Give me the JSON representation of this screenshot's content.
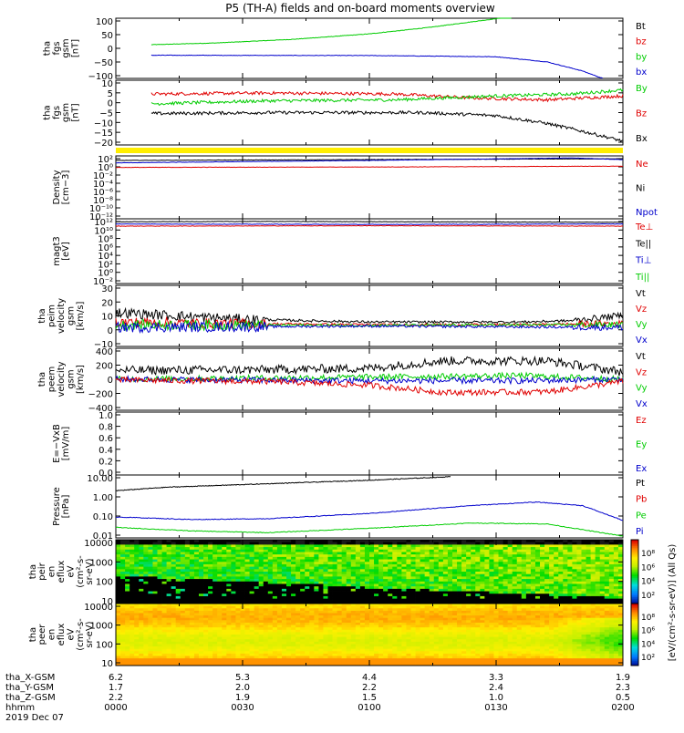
{
  "title": "P5 (TH-A) fields and on-board moments overview",
  "colors": {
    "black": "#000000",
    "red": "#e00000",
    "green": "#00cc00",
    "blue": "#0000cc",
    "yellow": "#ffee00"
  },
  "chart_data": [
    {
      "type": "line",
      "name": "tha-fgs-gsm",
      "ylabel_lines": [
        "tha",
        "fgs",
        "gsm",
        "[nT]"
      ],
      "yticks": [
        "100",
        "50",
        "0",
        "−50",
        "−100"
      ],
      "ylim": [
        -100,
        100
      ],
      "legend": [
        {
          "label": "Bt",
          "color": "#000000"
        },
        {
          "label": "bz",
          "color": "#e00000"
        },
        {
          "label": "by",
          "color": "#00cc00"
        },
        {
          "label": "bx",
          "color": "#0000cc"
        }
      ],
      "series": [
        {
          "color": "#00cc00",
          "x": [
            0.07,
            0.2,
            0.35,
            0.5,
            0.62,
            0.72,
            0.78
          ],
          "y": [
            12,
            18,
            30,
            48,
            70,
            92,
            105
          ]
        },
        {
          "color": "#0000cc",
          "x": [
            0.07,
            0.5,
            0.75,
            0.85,
            0.92,
            0.96
          ],
          "y": [
            -23,
            -24,
            -28,
            -45,
            -75,
            -100
          ]
        }
      ]
    },
    {
      "type": "line",
      "name": "tha-fgs-gsm-2",
      "ylabel_lines": [
        "tha",
        "fgs",
        "gsm",
        "[nT]"
      ],
      "yticks": [
        "10",
        "5",
        "0",
        "−5",
        "−10",
        "−15",
        "−20"
      ],
      "ylim": [
        -22,
        11
      ],
      "legend": [
        {
          "label": "By",
          "color": "#00cc00"
        },
        {
          "label": "Bz",
          "color": "#e00000"
        },
        {
          "label": "Bx",
          "color": "#000000"
        }
      ],
      "series": [
        {
          "color": "#e00000",
          "x": [
            0.07,
            0.3,
            0.55,
            0.7,
            0.85,
            1.0
          ],
          "y": [
            4,
            4.5,
            4,
            2,
            1,
            3
          ]
        },
        {
          "color": "#00cc00",
          "x": [
            0.07,
            0.3,
            0.55,
            0.75,
            0.9,
            1.0
          ],
          "y": [
            -1,
            0.5,
            1,
            3,
            4,
            6
          ]
        },
        {
          "color": "#000000",
          "x": [
            0.07,
            0.3,
            0.6,
            0.75,
            0.85,
            0.92,
            1.0
          ],
          "y": [
            -6,
            -5.5,
            -5.5,
            -7,
            -11,
            -15,
            -20
          ]
        }
      ]
    },
    {
      "type": "line",
      "name": "density",
      "ylabel_lines": [
        "Density",
        "[cm−3]"
      ],
      "yticks": [
        "10²",
        "10⁰",
        "10⁻²",
        "10⁻⁴",
        "10⁻⁶",
        "10⁻⁸",
        "10⁻¹⁰",
        "10⁻¹²"
      ],
      "ylim": [
        -12.8,
        2.5
      ],
      "log": true,
      "legend": [
        {
          "label": "Ne",
          "color": "#e00000"
        },
        {
          "label": "Ni",
          "color": "#000000"
        },
        {
          "label": "Npot",
          "color": "#0000cc"
        }
      ],
      "series": [
        {
          "color": "#000000",
          "x": [
            0.0,
            0.5,
            1.0
          ],
          "y": [
            1.4,
            1.6,
            1.8
          ]
        },
        {
          "color": "#0000cc",
          "x": [
            0.0,
            0.5,
            0.9,
            1.0
          ],
          "y": [
            0.8,
            1.4,
            2.0,
            1.6
          ]
        },
        {
          "color": "#e00000",
          "x": [
            0.0,
            0.5,
            1.0
          ],
          "y": [
            -0.3,
            -0.2,
            0.0
          ]
        }
      ]
    },
    {
      "type": "line",
      "name": "magt3",
      "ylabel_lines": [
        "magt3",
        "[eV]"
      ],
      "yticks": [
        "10¹²",
        "10¹⁰",
        "10⁸",
        "10⁶",
        "10⁴",
        "10²",
        "10⁰",
        "10⁻²"
      ],
      "ylim": [
        -2.5,
        12.5
      ],
      "log": true,
      "legend": [
        {
          "label": "Te⊥",
          "color": "#e00000"
        },
        {
          "label": "Te||",
          "color": "#000000"
        },
        {
          "label": "Ti⊥",
          "color": "#0000cc"
        },
        {
          "label": "Ti||",
          "color": "#00cc00"
        }
      ],
      "series": [
        {
          "color": "#000000",
          "x": [
            0.0,
            0.3,
            0.6,
            1.0
          ],
          "y": [
            11.8,
            11.9,
            11.8,
            11.7
          ]
        },
        {
          "color": "#0000cc",
          "x": [
            0.0,
            0.5,
            1.0
          ],
          "y": [
            11.3,
            11.2,
            11.3
          ]
        },
        {
          "color": "#e00000",
          "x": [
            0.0,
            0.5,
            1.0
          ],
          "y": [
            10.8,
            10.9,
            10.8
          ]
        }
      ]
    },
    {
      "type": "line",
      "name": "peim-velocity",
      "ylabel_lines": [
        "tha",
        "peim",
        "velocity",
        "gsm",
        "[km/s]"
      ],
      "yticks": [
        "30",
        "20",
        "10",
        "0",
        "−10"
      ],
      "ylim": [
        -15,
        30
      ],
      "legend": [
        {
          "label": "Vt",
          "color": "#000000"
        },
        {
          "label": "Vz",
          "color": "#e00000"
        },
        {
          "label": "Vy",
          "color": "#00cc00"
        },
        {
          "label": "Vx",
          "color": "#0000cc"
        }
      ],
      "series": [
        {
          "color": "#000000",
          "x": [
            0.0,
            0.1,
            0.25,
            0.5,
            0.8,
            0.9,
            1.0
          ],
          "y": [
            10,
            8,
            5,
            3,
            3,
            4,
            8
          ]
        },
        {
          "color": "#e00000",
          "x": [
            0.0,
            0.2,
            0.5,
            0.8,
            1.0
          ],
          "y": [
            3,
            2,
            1,
            1,
            2
          ]
        },
        {
          "color": "#00cc00",
          "x": [
            0.0,
            0.5,
            1.0
          ],
          "y": [
            1,
            0.5,
            1
          ]
        },
        {
          "color": "#0000cc",
          "x": [
            0.0,
            0.5,
            1.0
          ],
          "y": [
            -1,
            0,
            -1
          ]
        }
      ]
    },
    {
      "type": "line",
      "name": "peem-velocity",
      "ylabel_lines": [
        "tha",
        "peem",
        "velocity",
        "gsm",
        "[km/s]"
      ],
      "yticks": [
        "400",
        "200",
        "0",
        "−200",
        "−400"
      ],
      "ylim": [
        -420,
        420
      ],
      "legend": [
        {
          "label": "Vt",
          "color": "#000000"
        },
        {
          "label": "Vz",
          "color": "#e00000"
        },
        {
          "label": "Vy",
          "color": "#00cc00"
        },
        {
          "label": "Vx",
          "color": "#0000cc"
        }
      ],
      "series": [
        {
          "color": "#000000",
          "x": [
            0.0,
            0.3,
            0.5,
            0.65,
            0.85,
            1.0
          ],
          "y": [
            120,
            130,
            150,
            250,
            250,
            100
          ]
        },
        {
          "color": "#00cc00",
          "x": [
            0.0,
            0.5,
            0.8,
            1.0
          ],
          "y": [
            0,
            30,
            50,
            0
          ]
        },
        {
          "color": "#0000cc",
          "x": [
            0.0,
            0.5,
            0.8,
            1.0
          ],
          "y": [
            0,
            -20,
            -20,
            0
          ]
        },
        {
          "color": "#e00000",
          "x": [
            0.0,
            0.3,
            0.5,
            0.65,
            0.85,
            1.0
          ],
          "y": [
            -10,
            -30,
            -80,
            -180,
            -170,
            -30
          ]
        }
      ]
    },
    {
      "type": "line",
      "name": "e-field",
      "ylabel_lines": [
        "E=−VxB",
        "[mV/m]"
      ],
      "yticks": [
        "1.0",
        "0.8",
        "0.6",
        "0.4",
        "0.2",
        "0.0"
      ],
      "ylim": [
        0,
        1
      ],
      "legend": [
        {
          "label": "Ez",
          "color": "#e00000"
        },
        {
          "label": "Ey",
          "color": "#00cc00"
        },
        {
          "label": "Ex",
          "color": "#0000cc"
        }
      ],
      "series": []
    },
    {
      "type": "line",
      "name": "pressure",
      "ylabel_lines": [
        "Pressure",
        "[nPa]"
      ],
      "yticks": [
        "10.00",
        "1.00",
        "0.10",
        "0.01"
      ],
      "ylim": [
        -2.3,
        1.3
      ],
      "log": true,
      "legend": [
        {
          "label": "Pt",
          "color": "#000000"
        },
        {
          "label": "Pb",
          "color": "#e00000"
        },
        {
          "label": "Pe",
          "color": "#00cc00"
        },
        {
          "label": "Pi",
          "color": "#0000cc"
        }
      ],
      "series": [
        {
          "color": "#000000",
          "x": [
            0.0,
            0.1,
            0.3,
            0.5,
            0.66
          ],
          "y": [
            0.4,
            0.6,
            0.8,
            1.0,
            1.2
          ]
        },
        {
          "color": "#0000cc",
          "x": [
            0.0,
            0.15,
            0.3,
            0.5,
            0.7,
            0.83,
            0.92,
            1.0
          ],
          "y": [
            -1.1,
            -1.25,
            -1.2,
            -0.9,
            -0.45,
            -0.25,
            -0.45,
            -1.3
          ]
        },
        {
          "color": "#00cc00",
          "x": [
            0.0,
            0.15,
            0.3,
            0.5,
            0.7,
            0.85,
            1.0
          ],
          "y": [
            -1.7,
            -1.9,
            -2.0,
            -1.75,
            -1.45,
            -1.5,
            -2.2
          ]
        }
      ]
    },
    {
      "type": "heatmap",
      "name": "peir-eflux",
      "ylabel_lines": [
        "tha",
        "peir",
        "en",
        "eflux",
        "eV",
        "(cm²-s-",
        "sr-eV)"
      ],
      "yticks": [
        "10000",
        "1000",
        "100",
        "10"
      ],
      "ylim": [
        0.8,
        4.4
      ],
      "log": true
    },
    {
      "type": "heatmap",
      "name": "peer-eflux",
      "ylabel_lines": [
        "tha",
        "peer",
        "en",
        "eflux",
        "eV",
        "(cm²-s-",
        "sr-eV)"
      ],
      "yticks": [
        "10000",
        "1000",
        "100",
        "10"
      ],
      "ylim": [
        0.8,
        4.4
      ],
      "log": true
    }
  ],
  "colorbar": {
    "label1": "[eV/(cm²-s-sr-eV)] (All Qs)",
    "ticks1": [
      "10⁸",
      "10⁶",
      "10⁴",
      "10²"
    ],
    "ticks2": [
      "10⁸",
      "10⁶",
      "10⁴",
      "10²"
    ]
  },
  "xaxis": {
    "row_labels": [
      "tha_X-GSM",
      "tha_Y-GSM",
      "tha_Z-GSM",
      "hhmm",
      "2019 Dec 07"
    ],
    "columns": [
      {
        "x": 0.0,
        "vals": [
          "6.2",
          "1.7",
          "2.2",
          "0000"
        ]
      },
      {
        "x": 0.25,
        "vals": [
          "5.3",
          "2.0",
          "1.9",
          "0030"
        ]
      },
      {
        "x": 0.5,
        "vals": [
          "4.4",
          "2.2",
          "1.5",
          "0100"
        ]
      },
      {
        "x": 0.75,
        "vals": [
          "3.3",
          "2.4",
          "1.0",
          "0130"
        ]
      },
      {
        "x": 1.0,
        "vals": [
          "1.9",
          "2.3",
          "0.5",
          "0200"
        ]
      }
    ]
  }
}
